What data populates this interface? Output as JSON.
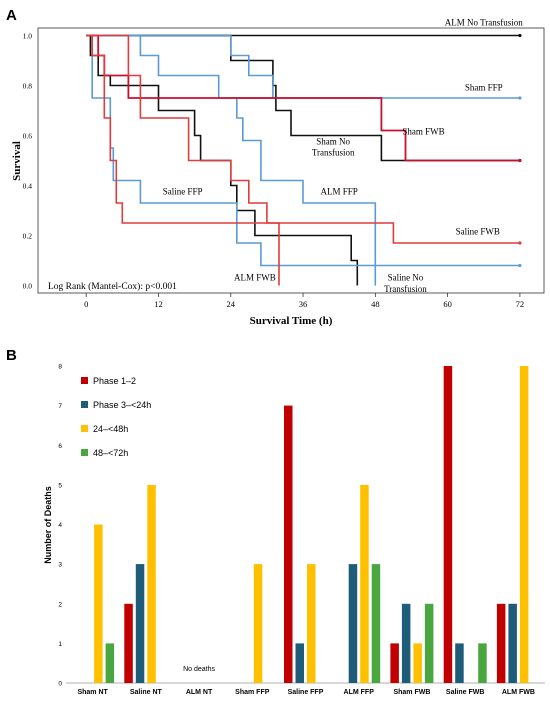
{
  "chart_data": [
    {
      "panel": "A",
      "type": "line",
      "step": true,
      "xlabel": "Survival Time (h)",
      "ylabel": "Survival",
      "xlim": [
        -8,
        76
      ],
      "ylim": [
        -0.03,
        1.03
      ],
      "x_ticks": [
        0,
        12,
        24,
        36,
        48,
        60,
        72
      ],
      "y_ticks": [
        "0.0",
        "0.2",
        "0.4",
        "0.6",
        "0.8",
        "1.0"
      ],
      "y_tick_values": [
        0,
        0.2,
        0.4,
        0.6,
        0.8,
        1.0
      ],
      "stat_label": "Log Rank (Mantel-Cox): p<0.001",
      "colors": {
        "nt": "#111111",
        "ffp": "#5b9bd5",
        "fwb": "#e03c3c",
        "sham_fwb": "#c8102e"
      },
      "series": [
        {
          "key": "alm_nt",
          "color": "#111111",
          "width": 1.6,
          "points": [
            [
              0,
              1
            ],
            [
              72,
              1
            ]
          ],
          "end": "cap"
        },
        {
          "key": "sham_nt",
          "color": "#111111",
          "width": 1.6,
          "points": [
            [
              0,
              1
            ],
            [
              24,
              1
            ],
            [
              24,
              0.9
            ],
            [
              31,
              0.9
            ],
            [
              31,
              0.8
            ],
            [
              31.5,
              0.8
            ],
            [
              31.5,
              0.7
            ],
            [
              34,
              0.7
            ],
            [
              34,
              0.6
            ],
            [
              49,
              0.6
            ],
            [
              49,
              0.5
            ],
            [
              72,
              0.5
            ]
          ],
          "end": "cap"
        },
        {
          "key": "saline_nt",
          "color": "#111111",
          "width": 1.6,
          "points": [
            [
              0,
              1
            ],
            [
              0.7,
              1
            ],
            [
              0.7,
              0.92
            ],
            [
              2,
              0.92
            ],
            [
              2,
              0.84
            ],
            [
              4,
              0.84
            ],
            [
              4,
              0.8
            ],
            [
              12,
              0.8
            ],
            [
              12,
              0.7
            ],
            [
              18,
              0.7
            ],
            [
              18,
              0.6
            ],
            [
              19,
              0.6
            ],
            [
              19,
              0.5
            ],
            [
              24,
              0.5
            ],
            [
              24,
              0.4
            ],
            [
              25,
              0.4
            ],
            [
              25,
              0.3
            ],
            [
              28,
              0.3
            ],
            [
              28,
              0.2
            ],
            [
              44,
              0.2
            ],
            [
              44,
              0.1
            ],
            [
              45,
              0.1
            ],
            [
              45,
              0
            ]
          ],
          "end": "none"
        },
        {
          "key": "sham_ffp",
          "color": "#5b9bd5",
          "width": 1.6,
          "points": [
            [
              0,
              1
            ],
            [
              9,
              1
            ],
            [
              9,
              0.92
            ],
            [
              12,
              0.92
            ],
            [
              12,
              0.84
            ],
            [
              22,
              0.84
            ],
            [
              22,
              0.75
            ],
            [
              72,
              0.75
            ]
          ],
          "end": "cap"
        },
        {
          "key": "saline_ffp",
          "color": "#5b9bd5",
          "width": 1.6,
          "points": [
            [
              0,
              1
            ],
            [
              1,
              1
            ],
            [
              1,
              0.75
            ],
            [
              4,
              0.75
            ],
            [
              4,
              0.55
            ],
            [
              4.5,
              0.55
            ],
            [
              4.5,
              0.42
            ],
            [
              9,
              0.42
            ],
            [
              9,
              0.33
            ],
            [
              25,
              0.33
            ],
            [
              25,
              0.17
            ],
            [
              29,
              0.17
            ],
            [
              29,
              0.08
            ],
            [
              72,
              0.08
            ]
          ],
          "end": "cap"
        },
        {
          "key": "alm_ffp",
          "color": "#5b9bd5",
          "width": 1.6,
          "points": [
            [
              0,
              1
            ],
            [
              24,
              1
            ],
            [
              24,
              0.92
            ],
            [
              27,
              0.92
            ],
            [
              27,
              0.84
            ],
            [
              31,
              0.84
            ],
            [
              31,
              0.75
            ],
            [
              25,
              0.75
            ],
            [
              25,
              0.67
            ],
            [
              26,
              0.67
            ],
            [
              26,
              0.58
            ],
            [
              29,
              0.58
            ],
            [
              29,
              0.42
            ],
            [
              36,
              0.42
            ],
            [
              36,
              0.33
            ],
            [
              48,
              0.33
            ],
            [
              48,
              0
            ]
          ],
          "end": "none"
        },
        {
          "key": "sham_fwb",
          "color": "#c8102e",
          "width": 1.8,
          "points": [
            [
              0,
              1
            ],
            [
              2,
              1
            ],
            [
              2,
              0.92
            ],
            [
              3,
              0.92
            ],
            [
              3,
              0.84
            ],
            [
              7,
              0.84
            ],
            [
              7,
              0.75
            ],
            [
              49,
              0.75
            ],
            [
              49,
              0.62
            ],
            [
              53,
              0.62
            ],
            [
              53,
              0.5
            ],
            [
              72,
              0.5
            ]
          ],
          "end": "cap"
        },
        {
          "key": "saline_fwb",
          "color": "#e03c3c",
          "width": 1.6,
          "points": [
            [
              0,
              1
            ],
            [
              1,
              1
            ],
            [
              1,
              0.92
            ],
            [
              3,
              0.92
            ],
            [
              3,
              0.67
            ],
            [
              4,
              0.67
            ],
            [
              4,
              0.5
            ],
            [
              5,
              0.5
            ],
            [
              5,
              0.33
            ],
            [
              6,
              0.33
            ],
            [
              6,
              0.25
            ],
            [
              51,
              0.25
            ],
            [
              51,
              0.17
            ],
            [
              72,
              0.17
            ]
          ],
          "end": "cap"
        },
        {
          "key": "alm_fwb",
          "color": "#e03c3c",
          "width": 1.6,
          "points": [
            [
              0,
              1
            ],
            [
              7,
              1
            ],
            [
              7,
              0.84
            ],
            [
              9,
              0.84
            ],
            [
              9,
              0.67
            ],
            [
              17,
              0.67
            ],
            [
              17,
              0.5
            ],
            [
              24,
              0.5
            ],
            [
              24,
              0.42
            ],
            [
              27,
              0.42
            ],
            [
              27,
              0.33
            ],
            [
              30,
              0.33
            ],
            [
              30,
              0.25
            ],
            [
              32,
              0.25
            ],
            [
              32,
              0
            ]
          ],
          "end": "none"
        }
      ],
      "annotations": [
        {
          "text": "ALM No Transfusion",
          "x": 66,
          "y": 1.04
        },
        {
          "text": "Sham FFP",
          "x": 66,
          "y": 0.78
        },
        {
          "text": "Sham No",
          "x": 41,
          "y": 0.565
        },
        {
          "text": "Transfusion",
          "x": 41,
          "y": 0.52
        },
        {
          "text": "Sham FWB",
          "x": 56,
          "y": 0.605
        },
        {
          "text": "Saline FFP",
          "x": 16,
          "y": 0.365
        },
        {
          "text": "ALM FFP",
          "x": 42,
          "y": 0.365
        },
        {
          "text": "Saline FWB",
          "x": 65,
          "y": 0.205
        },
        {
          "text": "ALM FWB",
          "x": 28,
          "y": 0.02
        },
        {
          "text": "Saline No",
          "x": 53,
          "y": 0.02
        },
        {
          "text": "Transfusion",
          "x": 53,
          "y": -0.025
        }
      ]
    },
    {
      "panel": "B",
      "type": "bar",
      "ylabel": "Number of Deaths",
      "xlabel": "",
      "ylim": [
        0,
        8
      ],
      "y_ticks": [
        0,
        1,
        2,
        3,
        4,
        5,
        6,
        7,
        8
      ],
      "categories": [
        "Sham NT",
        "Saline NT",
        "ALM NT",
        "Sham FFP",
        "Saline FFP",
        "ALM FFP",
        "Sham FWB",
        "Saline FWB",
        "ALM FWB"
      ],
      "series": [
        {
          "name": "Phase 1–2",
          "color": "#c00000",
          "values": [
            0,
            2,
            0,
            0,
            7,
            0,
            1,
            8,
            2
          ]
        },
        {
          "name": "Phase 3–<24h",
          "color": "#1f5c7a",
          "values": [
            0,
            3,
            0,
            0,
            1,
            3,
            2,
            1,
            2
          ]
        },
        {
          "name": "24–<48h",
          "color": "#ffc000",
          "values": [
            4,
            5,
            0,
            3,
            3,
            5,
            1,
            0,
            8
          ]
        },
        {
          "name": "48–<72h",
          "color": "#4aa63f",
          "values": [
            1,
            0,
            0,
            0,
            0,
            3,
            2,
            1,
            0
          ]
        }
      ],
      "annotations": [
        {
          "text": "No deaths",
          "category": "ALM NT",
          "y": 0.3
        }
      ],
      "legend_position": "top-left"
    }
  ],
  "panels": {
    "a_label": "A",
    "b_label": "B"
  }
}
